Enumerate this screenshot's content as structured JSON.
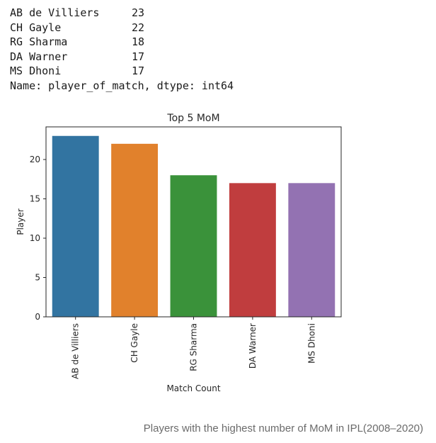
{
  "output": {
    "rows": [
      {
        "name": "AB de Villiers",
        "value": "23"
      },
      {
        "name": "CH Gayle",
        "value": "22"
      },
      {
        "name": "RG Sharma",
        "value": "18"
      },
      {
        "name": "DA Warner",
        "value": "17"
      },
      {
        "name": "MS Dhoni",
        "value": "17"
      }
    ],
    "footer": "Name: player_of_match, dtype: int64"
  },
  "chart_data": {
    "type": "bar",
    "title": "Top 5 MoM",
    "xlabel": "Match Count",
    "ylabel": "Player",
    "categories": [
      "AB de Villiers",
      "CH Gayle",
      "RG Sharma",
      "DA Warner",
      "MS Dhoni"
    ],
    "values": [
      23,
      22,
      18,
      17,
      17
    ],
    "colors": [
      "#3274a1",
      "#e1812c",
      "#3a923a",
      "#c03d3e",
      "#9372b2"
    ],
    "ylim": [
      0,
      24.15
    ],
    "yticks": [
      0,
      5,
      10,
      15,
      20
    ],
    "grid": false,
    "legend": "none"
  },
  "caption": "Players with the highest number of MoM in IPL(2008–2020)"
}
